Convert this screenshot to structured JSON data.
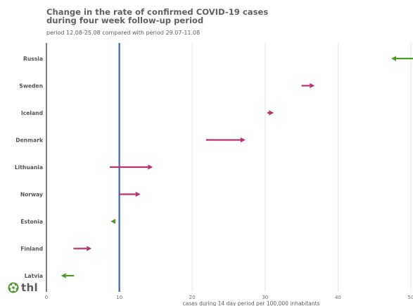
{
  "title_lines": [
    "Change in the rate of confirmed COVID-19 cases",
    "during four week follow-up period"
  ],
  "subtitle": "period 12.08-25.08 compared with period 29.07-11.08",
  "logo_text": "thl",
  "colors": {
    "increase": "#b5366e",
    "decrease": "#4d9a2a",
    "reference_line": "#3a64b0",
    "grid": "#e6e6e6",
    "label": "#555555"
  },
  "chart_data": {
    "type": "arrow",
    "title": "Change in the rate of confirmed COVID-19 cases during four week follow-up period",
    "subtitle": "period 12.08-25.08 compared with period 29.07-11.08",
    "xlabel": "cases during 14 day period per 100,000 inhabitants",
    "xlim": [
      0,
      50
    ],
    "xticks": [
      0,
      10,
      20,
      30,
      40,
      50
    ],
    "reference_line": 10,
    "grid": true,
    "rows": [
      {
        "category": "Russia",
        "from": 53.0,
        "to": 47.3
      },
      {
        "category": "Sweden",
        "from": 35.0,
        "to": 36.8
      },
      {
        "category": "Iceland",
        "from": 30.3,
        "to": 31.2
      },
      {
        "category": "Denmark",
        "from": 21.9,
        "to": 27.3
      },
      {
        "category": "Lithuania",
        "from": 8.7,
        "to": 14.6
      },
      {
        "category": "Norway",
        "from": 10.0,
        "to": 12.9
      },
      {
        "category": "Estonia",
        "from": 9.3,
        "to": 8.8
      },
      {
        "category": "Finland",
        "from": 3.7,
        "to": 6.2
      },
      {
        "category": "Latvia",
        "from": 3.8,
        "to": 2.0
      }
    ]
  }
}
